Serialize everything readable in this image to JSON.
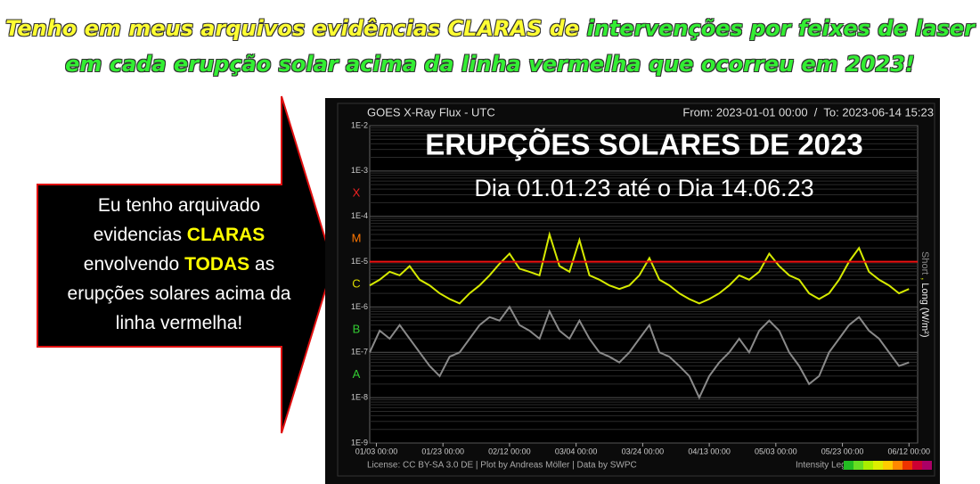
{
  "header": {
    "line1": [
      "Tenho em meus arquivos evidências CLARAS de ",
      "intervenções por feixes de laser"
    ],
    "line2": "em cada erupção solar acima da linha vermelha que ocorreu em 2023!"
  },
  "callout": [
    "Eu tenho arquivado",
    "evidencias ",
    "CLARAS",
    "envolvendo ",
    "TODAS",
    " as",
    "erupções solares acima da",
    "linha vermelha!"
  ],
  "chart_data": {
    "type": "line",
    "title": "GOES X-Ray Flux - UTC",
    "range_text": "From: 2023-01-01 00:00  /  To: 2023-06-14 15:23",
    "overlay_title": "ERUPÇÕES SOLARES DE 2023",
    "overlay_subtitle": "Dia 01.01.23 até o Dia 14.06.23",
    "footer": "License: CC BY-SA 3.0 DE | Plot by Andreas Möller | Data by SWPC",
    "legend_label": "Intensity Legend",
    "y_axis_labels": [
      "Short",
      ",",
      "Long (W/m²)"
    ],
    "classes": [
      "X",
      "M",
      "C",
      "B",
      "A"
    ],
    "log_y": true,
    "grid": true,
    "threshold": {
      "value": 1e-05,
      "color": "#ee1111"
    },
    "xlim": [
      0,
      164.6
    ],
    "ylim": [
      1e-09,
      0.01
    ],
    "xticks": [
      {
        "value": 2,
        "label": "01/03 00:00"
      },
      {
        "value": 22,
        "label": "01/23 00:00"
      },
      {
        "value": 42,
        "label": "02/12 00:00"
      },
      {
        "value": 62,
        "label": "03/04 00:00"
      },
      {
        "value": 82,
        "label": "03/24 00:00"
      },
      {
        "value": 102,
        "label": "04/13 00:00"
      },
      {
        "value": 122,
        "label": "05/03 00:00"
      },
      {
        "value": 142,
        "label": "05/23 00:00"
      },
      {
        "value": 162,
        "label": "06/12 00:00"
      }
    ],
    "yticks": [
      {
        "value": 1e-09,
        "label": "1E-9"
      },
      {
        "value": 1e-08,
        "label": "1E-8"
      },
      {
        "value": 1e-07,
        "label": "1E-7"
      },
      {
        "value": 1e-06,
        "label": "1E-6"
      },
      {
        "value": 1e-05,
        "label": "1E-5"
      },
      {
        "value": 0.0001,
        "label": "1E-4"
      },
      {
        "value": 0.001,
        "label": "1E-3"
      },
      {
        "value": 0.01,
        "label": "1E-2"
      }
    ],
    "x": [
      0,
      3,
      6,
      9,
      12,
      15,
      18,
      21,
      24,
      27,
      30,
      33,
      36,
      39,
      42,
      45,
      48,
      51,
      54,
      57,
      60,
      63,
      66,
      69,
      72,
      75,
      78,
      81,
      84,
      87,
      90,
      93,
      96,
      99,
      102,
      105,
      108,
      111,
      114,
      117,
      120,
      123,
      126,
      129,
      132,
      135,
      138,
      141,
      144,
      147,
      150,
      153,
      156,
      159,
      162
    ],
    "series": [
      {
        "name": "Short",
        "color": "#8a8a8a",
        "values": [
          1e-07,
          3e-07,
          2e-07,
          4e-07,
          2e-07,
          1e-07,
          5e-08,
          3e-08,
          8e-08,
          1e-07,
          2e-07,
          4e-07,
          6e-07,
          5e-07,
          1e-06,
          4e-07,
          3e-07,
          2e-07,
          8e-07,
          3e-07,
          2e-07,
          5e-07,
          2e-07,
          1e-07,
          8e-08,
          6e-08,
          1e-07,
          2e-07,
          4e-07,
          1e-07,
          8e-08,
          5e-08,
          3e-08,
          1e-08,
          3e-08,
          6e-08,
          1e-07,
          2e-07,
          1e-07,
          3e-07,
          5e-07,
          3e-07,
          1e-07,
          5e-08,
          2e-08,
          3e-08,
          1e-07,
          2e-07,
          4e-07,
          6e-07,
          3e-07,
          2e-07,
          1e-07,
          5e-08,
          6e-08
        ]
      },
      {
        "name": "Long",
        "color": "#d6ea00",
        "values": [
          3e-06,
          4e-06,
          6e-06,
          5e-06,
          8e-06,
          4e-06,
          3e-06,
          2e-06,
          1.5e-06,
          1.2e-06,
          2e-06,
          3e-06,
          5e-06,
          9e-06,
          1.5e-05,
          7e-06,
          6e-06,
          5e-06,
          4e-05,
          8e-06,
          6e-06,
          3e-05,
          5e-06,
          4e-06,
          3e-06,
          2.5e-06,
          3e-06,
          5e-06,
          1.2e-05,
          4e-06,
          3e-06,
          2e-06,
          1.5e-06,
          1.2e-06,
          1.5e-06,
          2e-06,
          3e-06,
          5e-06,
          4e-06,
          6e-06,
          1.5e-05,
          8e-06,
          5e-06,
          4e-06,
          2e-06,
          1.5e-06,
          2e-06,
          4e-06,
          1e-05,
          2e-05,
          6e-06,
          4e-06,
          3e-06,
          2e-06,
          2.5e-06
        ]
      }
    ]
  }
}
